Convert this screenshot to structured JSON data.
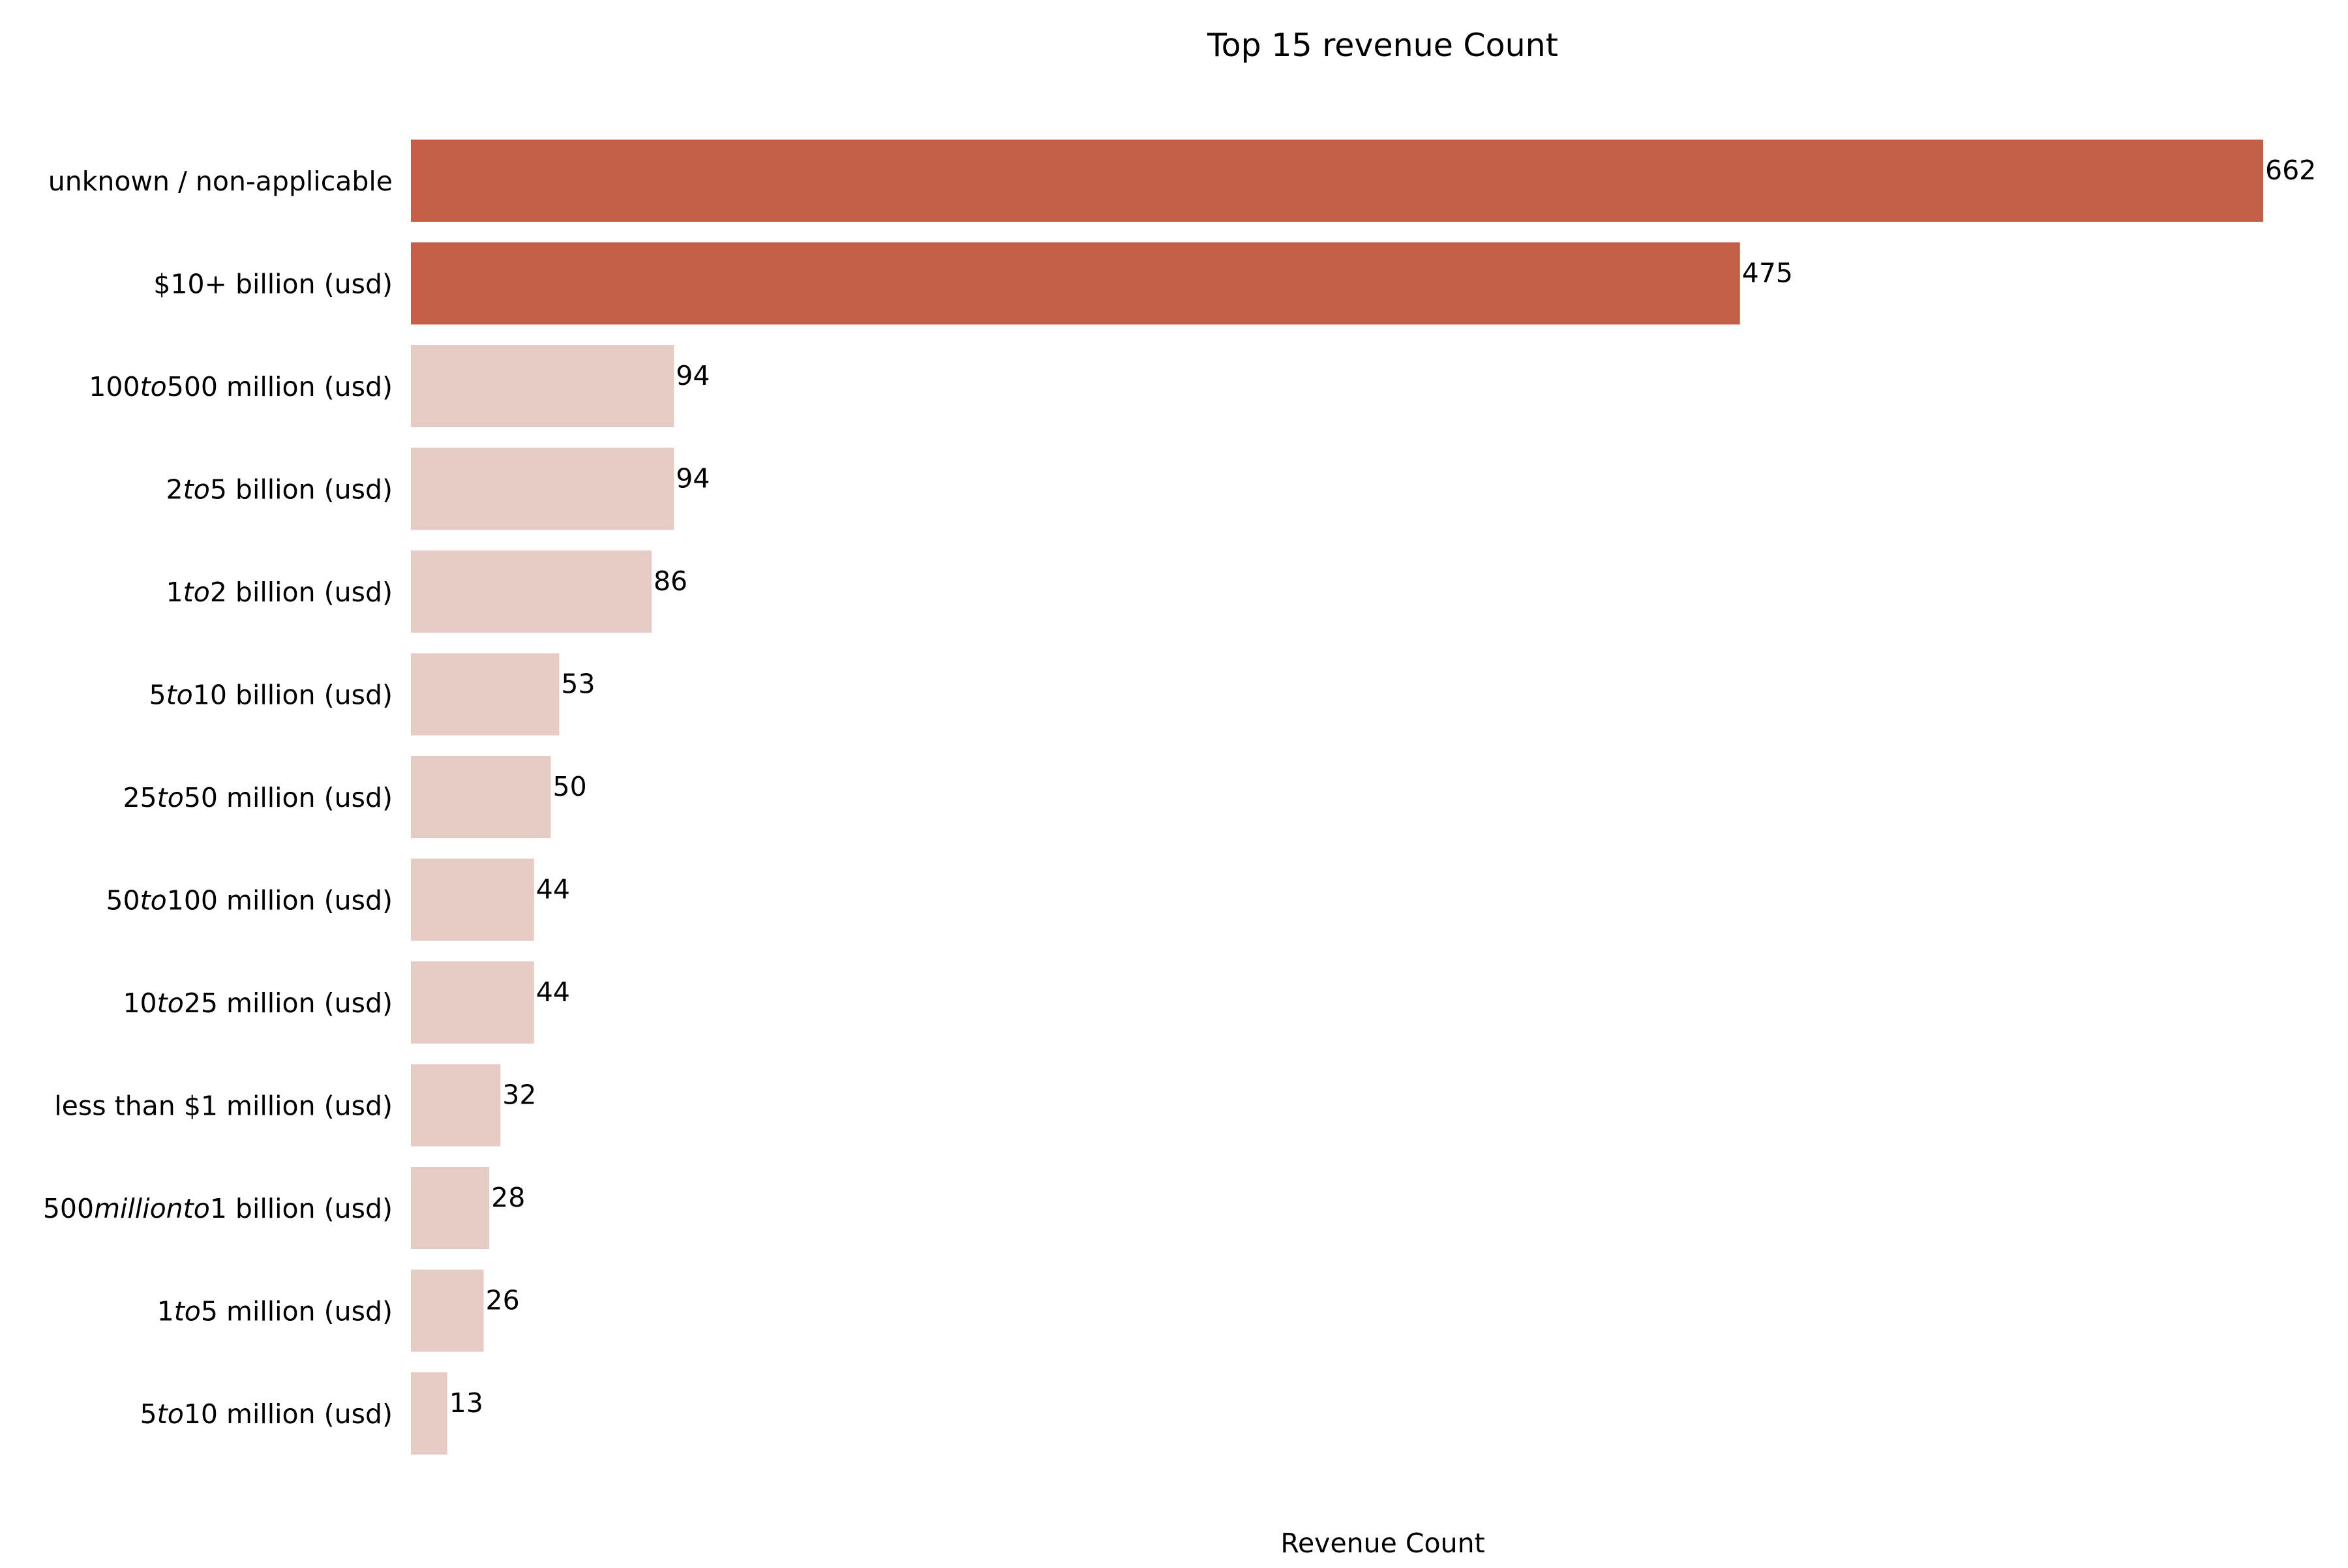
{
  "chart_data": {
    "type": "bar",
    "orientation": "horizontal",
    "title": "Top 15 revenue Count",
    "xlabel": "Revenue Count",
    "ylabel": "",
    "xlim": [
      0,
      662
    ],
    "grid": false,
    "legend": "none",
    "highlight_color": "#C45F47",
    "base_color": "#E6CBC5",
    "categories": [
      "unknown / non-applicable",
      "$10+ billion (usd)",
      "$100 to $500 million (usd)",
      "$2 to $5 billion (usd)",
      "$1 to $2 billion (usd)",
      "$5 to $10 billion (usd)",
      "$25 to $50 million (usd)",
      "$50 to $100 million (usd)",
      "$10 to $25 million (usd)",
      "less than $1 million (usd)",
      "$500 million to $1 billion (usd)",
      "$1 to $5 million (usd)",
      "$5 to $10 million (usd)"
    ],
    "category_display": [
      [
        {
          "t": "unknown / non-applicable"
        }
      ],
      [
        {
          "t": "$10+ billion (usd)"
        }
      ],
      [
        {
          "t": "100"
        },
        {
          "t": "to",
          "i": true
        },
        {
          "t": "500 million (usd)"
        }
      ],
      [
        {
          "t": "2"
        },
        {
          "t": "to",
          "i": true
        },
        {
          "t": "5 billion (usd)"
        }
      ],
      [
        {
          "t": "1"
        },
        {
          "t": "to",
          "i": true
        },
        {
          "t": "2 billion (usd)"
        }
      ],
      [
        {
          "t": "5"
        },
        {
          "t": "to",
          "i": true
        },
        {
          "t": "10 billion (usd)"
        }
      ],
      [
        {
          "t": "25"
        },
        {
          "t": "to",
          "i": true
        },
        {
          "t": "50 million (usd)"
        }
      ],
      [
        {
          "t": "50"
        },
        {
          "t": "to",
          "i": true
        },
        {
          "t": "100 million (usd)"
        }
      ],
      [
        {
          "t": "10"
        },
        {
          "t": "to",
          "i": true
        },
        {
          "t": "25 million (usd)"
        }
      ],
      [
        {
          "t": "less than $1 million (usd)"
        }
      ],
      [
        {
          "t": "500"
        },
        {
          "t": "millionto",
          "i": true
        },
        {
          "t": "1 billion (usd)"
        }
      ],
      [
        {
          "t": "1"
        },
        {
          "t": "to",
          "i": true
        },
        {
          "t": "5 million (usd)"
        }
      ],
      [
        {
          "t": "5"
        },
        {
          "t": "to",
          "i": true
        },
        {
          "t": "10 million (usd)"
        }
      ]
    ],
    "values": [
      662,
      475,
      94,
      94,
      86,
      53,
      50,
      44,
      44,
      32,
      28,
      26,
      13
    ],
    "highlighted": [
      true,
      true,
      false,
      false,
      false,
      false,
      false,
      false,
      false,
      false,
      false,
      false,
      false
    ]
  }
}
